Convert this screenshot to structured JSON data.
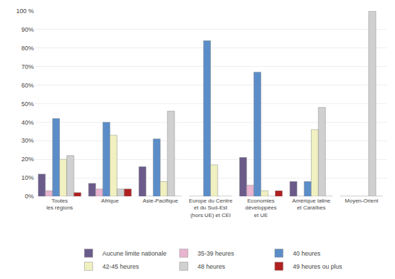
{
  "chart_data": {
    "type": "bar",
    "categories": [
      "Toutes\nles régions",
      "Afrique",
      "Asie-Pacifique",
      "Europe du Centre\net du Sud-Est\n(hors UE) et CEI",
      "Economies\ndéveloppées\net UE",
      "Amérique latine\net Caraïbes",
      "Moyen-Orient"
    ],
    "series": [
      {
        "name": "Aucune limite nationale",
        "color": "#6b5b8b",
        "values": [
          12,
          7,
          16,
          0,
          21,
          8,
          0
        ]
      },
      {
        "name": "35-39 heures",
        "color": "#e8b4d0",
        "values": [
          3,
          4,
          0,
          0,
          6,
          0,
          0
        ]
      },
      {
        "name": "40 heures",
        "color": "#5b8dc8",
        "values": [
          42,
          40,
          31,
          84,
          67,
          8,
          0
        ]
      },
      {
        "name": "42-45 heures",
        "color": "#f0f0c0",
        "values": [
          20,
          33,
          8,
          17,
          3,
          36,
          0
        ]
      },
      {
        "name": "48 heures",
        "color": "#d0d0d0",
        "values": [
          22,
          4,
          46,
          0,
          0,
          48,
          100
        ]
      },
      {
        "name": "49 heures ou plus",
        "color": "#b02020",
        "values": [
          2,
          4,
          0,
          0,
          3,
          0,
          0
        ]
      }
    ],
    "ylim": [
      0,
      100
    ],
    "yticks": [
      {
        "value": 0,
        "label": "0%"
      },
      {
        "value": 10,
        "label": "10%"
      },
      {
        "value": 20,
        "label": "20%"
      },
      {
        "value": 30,
        "label": "30%"
      },
      {
        "value": 40,
        "label": "40%"
      },
      {
        "value": 50,
        "label": "50%"
      },
      {
        "value": 60,
        "label": "60%"
      },
      {
        "value": 70,
        "label": "70%"
      },
      {
        "value": 80,
        "label": "80%"
      },
      {
        "value": 90,
        "label": "90%"
      },
      {
        "value": 100,
        "label": "100 %"
      }
    ],
    "grid": true,
    "legend": "bottom"
  }
}
